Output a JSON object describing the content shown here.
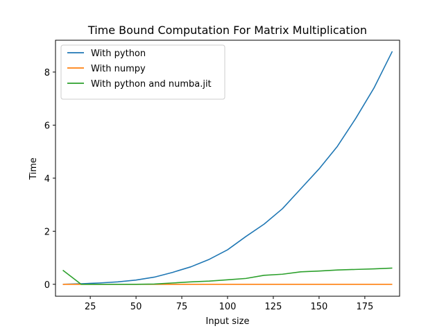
{
  "chart_data": {
    "type": "line",
    "title": "Time Bound Computation For Matrix Multiplication",
    "xlabel": "Input size",
    "ylabel": "Time",
    "xlim": [
      6,
      194
    ],
    "ylim": [
      -0.45,
      9.2
    ],
    "xticks": [
      25,
      50,
      75,
      100,
      125,
      150,
      175
    ],
    "yticks": [
      0,
      2,
      4,
      6,
      8
    ],
    "grid": false,
    "legend_position": "upper-left",
    "x": [
      10,
      20,
      30,
      40,
      50,
      60,
      70,
      80,
      90,
      100,
      110,
      120,
      130,
      140,
      150,
      160,
      170,
      180,
      190
    ],
    "series": [
      {
        "name": "With python",
        "color": "#1f77b4",
        "values": [
          0.0,
          0.02,
          0.05,
          0.09,
          0.16,
          0.27,
          0.45,
          0.66,
          0.94,
          1.3,
          1.8,
          2.27,
          2.85,
          3.6,
          4.35,
          5.2,
          6.25,
          7.4,
          8.78
        ]
      },
      {
        "name": "With numpy",
        "color": "#ff7f0e",
        "values": [
          0.0,
          0.0,
          0.0,
          0.0,
          0.0,
          0.0,
          0.0,
          0.0,
          0.0,
          0.0,
          0.0,
          0.0,
          0.0,
          0.0,
          0.0,
          0.0,
          0.0,
          0.0,
          0.0
        ]
      },
      {
        "name": "With python and numba.jit",
        "color": "#2ca02c",
        "values": [
          0.53,
          0.0,
          0.0,
          0.0,
          0.0,
          0.01,
          0.05,
          0.09,
          0.12,
          0.17,
          0.22,
          0.34,
          0.38,
          0.47,
          0.5,
          0.54,
          0.56,
          0.58,
          0.61
        ]
      }
    ]
  }
}
